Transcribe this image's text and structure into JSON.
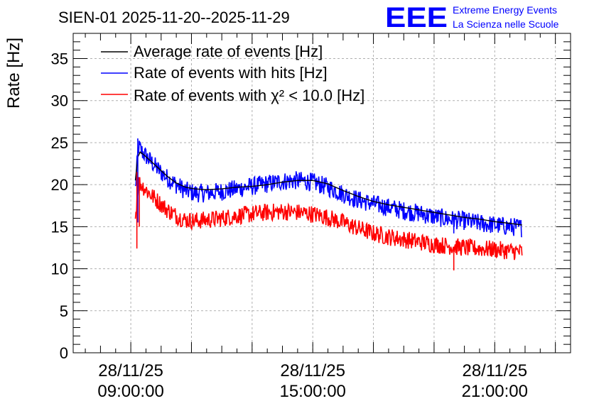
{
  "header": {
    "title": "SIEN-01 2025-11-20--2025-11-29",
    "logo_text": "EEE",
    "logo_line1": "Extreme Energy Events",
    "logo_line2": "La Scienza nelle Scuole",
    "brand_color": "#0000ff"
  },
  "chart_data": {
    "type": "line",
    "title": "SIEN-01 2025-11-20--2025-11-29",
    "ylabel": "Rate [Hz]",
    "xlabel": "",
    "ylim": [
      0,
      38
    ],
    "xlim": [
      7.1,
      23.5
    ],
    "grid": true,
    "legend_position": "top-left",
    "y_ticks": [
      0,
      5,
      10,
      15,
      20,
      25,
      30,
      35
    ],
    "y_tick_labels": [
      "0",
      "5",
      "10",
      "15",
      "20",
      "25",
      "30",
      "35"
    ],
    "x_ticks": [
      {
        "x": 9,
        "date": "28/11/25",
        "time": "09:00:00"
      },
      {
        "x": 15,
        "date": "28/11/25",
        "time": "15:00:00"
      },
      {
        "x": 21,
        "date": "28/11/25",
        "time": "21:00:00"
      }
    ],
    "x_unit": "hour of day",
    "series": [
      {
        "name": "Average rate of events [Hz]",
        "color": "#000000",
        "noise": 0,
        "x": [
          9.15,
          9.25,
          9.35,
          9.6,
          9.9,
          10.2,
          10.5,
          10.8,
          11.1,
          11.5,
          12.0,
          12.5,
          13.0,
          13.5,
          14.0,
          14.5,
          15.0,
          15.5,
          16.0,
          16.5,
          17.0,
          17.5,
          18.0,
          18.5,
          19.0,
          19.5,
          20.0,
          20.5,
          21.0,
          21.5,
          21.9
        ],
        "y": [
          20.5,
          24.0,
          23.8,
          23.0,
          22.0,
          21.0,
          20.2,
          19.7,
          19.5,
          19.4,
          19.5,
          19.7,
          19.8,
          20.0,
          20.3,
          20.5,
          20.5,
          20.1,
          19.3,
          18.6,
          18.0,
          17.6,
          17.3,
          17.0,
          16.7,
          16.4,
          16.1,
          15.9,
          15.6,
          15.4,
          15.2
        ]
      },
      {
        "name": "Rate of events with hits [Hz]",
        "color": "#0000ff",
        "noise": 1.6,
        "x": [
          9.15,
          9.25,
          9.35,
          9.6,
          9.9,
          10.2,
          10.5,
          10.8,
          11.1,
          11.5,
          12.0,
          12.5,
          13.0,
          13.5,
          14.0,
          14.5,
          15.0,
          15.5,
          16.0,
          16.5,
          17.0,
          17.5,
          18.0,
          18.5,
          19.0,
          19.5,
          20.0,
          20.5,
          21.0,
          21.5,
          21.9
        ],
        "y": [
          19.5,
          24.5,
          24.0,
          23.0,
          21.8,
          20.8,
          20.0,
          19.3,
          19.0,
          19.0,
          19.2,
          19.5,
          19.8,
          20.1,
          20.4,
          20.5,
          20.3,
          19.7,
          18.9,
          18.2,
          17.7,
          17.3,
          16.9,
          16.6,
          16.2,
          15.9,
          15.7,
          15.4,
          15.2,
          15.0,
          14.9
        ]
      },
      {
        "name": "Rate of events with χ² < 10.0 [Hz]",
        "color": "#ff0000",
        "noise": 1.5,
        "x": [
          9.15,
          9.25,
          9.35,
          9.6,
          9.9,
          10.2,
          10.5,
          10.8,
          11.1,
          11.5,
          12.0,
          12.5,
          13.0,
          13.5,
          14.0,
          14.5,
          15.0,
          15.5,
          16.0,
          16.5,
          17.0,
          17.5,
          18.0,
          18.5,
          19.0,
          19.5,
          20.0,
          20.5,
          21.0,
          21.5,
          21.9
        ],
        "y": [
          16.0,
          20.3,
          20.0,
          19.0,
          18.0,
          17.0,
          16.3,
          15.8,
          15.7,
          15.8,
          16.0,
          16.3,
          16.5,
          16.7,
          16.8,
          16.7,
          16.5,
          16.1,
          15.5,
          14.8,
          14.2,
          13.8,
          13.5,
          13.2,
          12.9,
          12.7,
          12.5,
          12.4,
          12.3,
          12.1,
          12.0
        ]
      }
    ],
    "spikes": [
      {
        "series": 1,
        "x": 9.23,
        "y": [
          15.5,
          25.5
        ]
      },
      {
        "series": 2,
        "x": 9.2,
        "y": [
          12.4,
          21.5
        ]
      },
      {
        "series": 2,
        "x": 9.28,
        "y": [
          15.0,
          20.8
        ]
      },
      {
        "series": 1,
        "x": 19.65,
        "y": [
          14.2,
          16.2
        ]
      },
      {
        "series": 2,
        "x": 19.65,
        "y": [
          9.8,
          12.6
        ]
      }
    ]
  }
}
